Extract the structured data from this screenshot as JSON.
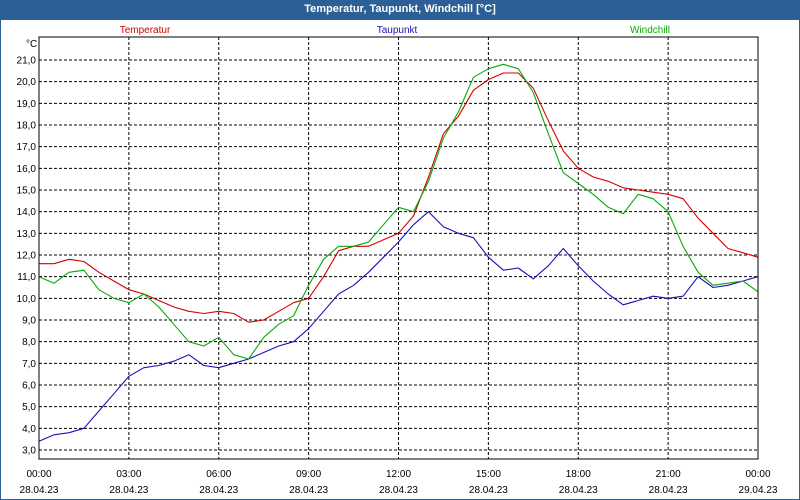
{
  "window_title": "Temperatur, Taupunkt, Windchill [°C]",
  "chart_data": {
    "type": "line",
    "title": "Temperatur, Taupunkt, Windchill [°C]",
    "ylabel": "°C",
    "ylim": [
      2.5,
      21.6
    ],
    "xlim": [
      0,
      24
    ],
    "grid": true,
    "legend_position": "top",
    "y_ticks": [
      "3,0",
      "4,0",
      "5,0",
      "6,0",
      "7,0",
      "8,0",
      "9,0",
      "10,0",
      "11,0",
      "12,0",
      "13,0",
      "14,0",
      "15,0",
      "16,0",
      "17,0",
      "18,0",
      "19,0",
      "20,0",
      "21,0"
    ],
    "x_ticks": [
      {
        "time": "00:00",
        "date": "28.04.23"
      },
      {
        "time": "03:00",
        "date": "28.04.23"
      },
      {
        "time": "06:00",
        "date": "28.04.23"
      },
      {
        "time": "09:00",
        "date": "28.04.23"
      },
      {
        "time": "12:00",
        "date": "28.04.23"
      },
      {
        "time": "15:00",
        "date": "28.04.23"
      },
      {
        "time": "18:00",
        "date": "28.04.23"
      },
      {
        "time": "21:00",
        "date": "28.04.23"
      },
      {
        "time": "00:00",
        "date": "29.04.23"
      }
    ],
    "series": [
      {
        "name": "Temperatur",
        "color": "#d40000",
        "x": [
          0,
          0.5,
          1,
          1.5,
          2,
          2.5,
          3,
          3.5,
          4,
          4.5,
          5,
          5.5,
          6,
          6.5,
          7,
          7.5,
          8,
          8.5,
          9,
          9.5,
          10,
          10.5,
          11,
          11.5,
          12,
          12.5,
          13,
          13.5,
          14,
          14.5,
          15,
          15.5,
          16,
          16.5,
          17,
          17.5,
          18,
          18.5,
          19,
          19.5,
          20,
          20.5,
          21,
          21.5,
          22,
          22.5,
          23,
          23.5,
          24
        ],
        "values": [
          11.6,
          11.6,
          11.8,
          11.7,
          11.2,
          10.8,
          10.4,
          10.2,
          9.9,
          9.6,
          9.4,
          9.3,
          9.4,
          9.3,
          8.9,
          9.0,
          9.4,
          9.8,
          10.0,
          11.0,
          12.2,
          12.4,
          12.4,
          12.7,
          13.0,
          13.8,
          15.6,
          17.6,
          18.4,
          19.6,
          20.1,
          20.4,
          20.4,
          19.7,
          18.2,
          16.8,
          16.0,
          15.6,
          15.4,
          15.1,
          15.0,
          14.9,
          14.8,
          14.6,
          13.7,
          13.0,
          12.3,
          12.1,
          11.9
        ]
      },
      {
        "name": "Taupunkt",
        "color": "#1a10b8",
        "x": [
          0,
          0.5,
          1,
          1.5,
          2,
          2.5,
          3,
          3.5,
          4,
          4.5,
          5,
          5.5,
          6,
          6.5,
          7,
          7.5,
          8,
          8.5,
          9,
          9.5,
          10,
          10.5,
          11,
          11.5,
          12,
          12.5,
          13,
          13.5,
          14,
          14.5,
          15,
          15.5,
          16,
          16.5,
          17,
          17.5,
          18,
          18.5,
          19,
          19.5,
          20,
          20.5,
          21,
          21.5,
          22,
          22.5,
          23,
          23.5,
          24
        ],
        "values": [
          3.4,
          3.7,
          3.8,
          4.0,
          4.8,
          5.6,
          6.4,
          6.8,
          6.9,
          7.1,
          7.4,
          6.9,
          6.8,
          7.0,
          7.2,
          7.5,
          7.8,
          8.0,
          8.6,
          9.4,
          10.2,
          10.6,
          11.2,
          11.9,
          12.6,
          13.4,
          14.0,
          13.3,
          13.0,
          12.8,
          11.9,
          11.3,
          11.4,
          10.9,
          11.5,
          12.3,
          11.5,
          10.8,
          10.2,
          9.7,
          9.9,
          10.1,
          10.0,
          10.1,
          11.0,
          10.5,
          10.6,
          10.8,
          11.0
        ]
      },
      {
        "name": "Windchill",
        "color": "#0aa80a",
        "x": [
          0,
          0.5,
          1,
          1.5,
          2,
          2.5,
          3,
          3.5,
          4,
          4.5,
          5,
          5.5,
          6,
          6.5,
          7,
          7.5,
          8,
          8.5,
          9,
          9.5,
          10,
          10.5,
          11,
          11.5,
          12,
          12.5,
          13,
          13.5,
          14,
          14.5,
          15,
          15.5,
          16,
          16.5,
          17,
          17.5,
          18,
          18.5,
          19,
          19.5,
          20,
          20.5,
          21,
          21.5,
          22,
          22.5,
          23,
          23.5,
          24
        ],
        "values": [
          11.0,
          10.7,
          11.2,
          11.3,
          10.4,
          10.0,
          9.8,
          10.2,
          9.6,
          8.8,
          8.0,
          7.8,
          8.2,
          7.4,
          7.2,
          8.2,
          8.8,
          9.2,
          10.6,
          11.8,
          12.4,
          12.4,
          12.6,
          13.4,
          14.2,
          14.0,
          15.4,
          17.4,
          18.6,
          20.2,
          20.6,
          20.8,
          20.6,
          19.5,
          17.6,
          15.8,
          15.3,
          14.8,
          14.2,
          13.9,
          14.8,
          14.6,
          14.0,
          12.4,
          11.2,
          10.6,
          10.7,
          10.8,
          10.3
        ]
      }
    ]
  }
}
